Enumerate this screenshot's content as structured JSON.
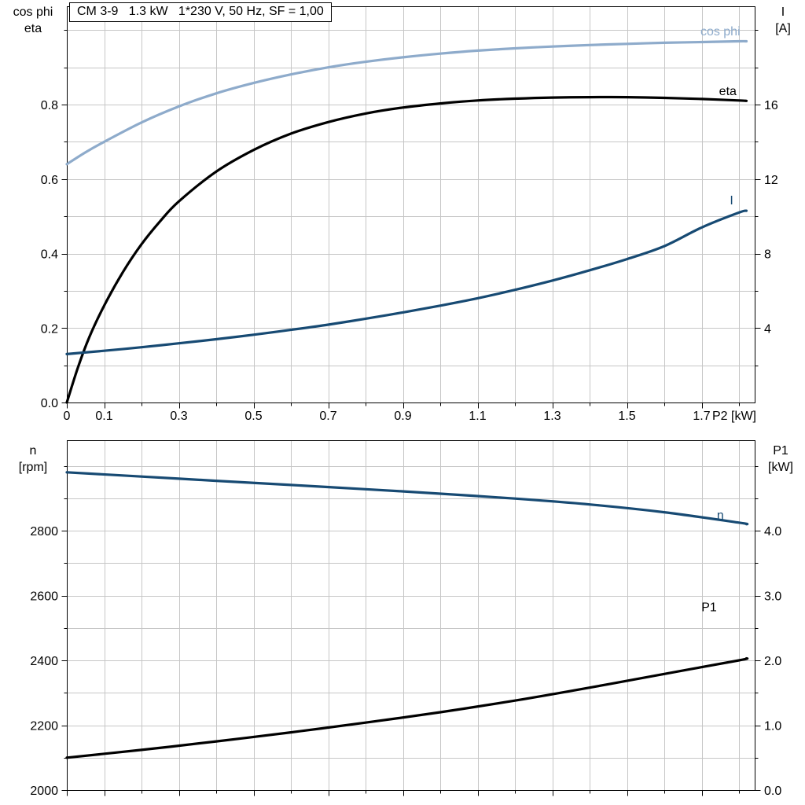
{
  "title_box": "CM 3-9   1.3 kW   1*230 V, 50 Hz, SF = 1,00",
  "corner_labels": {
    "top_left": {
      "line1": "cos phi",
      "line2": "eta"
    },
    "top_right": {
      "line1": "I",
      "line2": "[A]"
    },
    "bottom_left": {
      "line1": "n",
      "line2": "[rpm]"
    },
    "bottom_right": {
      "line1": "P1",
      "line2": "[kW]"
    }
  },
  "colors": {
    "light_blue": "#8EABCB",
    "dark_blue": "#174A73",
    "black": "#000000",
    "grid": "#c6c6c6"
  },
  "chart_data": [
    {
      "type": "line",
      "title": "CM 3-9   1.3 kW   1*230 V, 50 Hz, SF = 1,00",
      "grid": true,
      "x_axis": {
        "label": "P2 [kW]",
        "min": 0,
        "max": 1.842,
        "grid_step": 0.1,
        "ticks": [
          0,
          0.1,
          0.3,
          0.5,
          0.7,
          0.9,
          1.1,
          1.3,
          1.5,
          1.7
        ],
        "tick_labels": [
          "0",
          "0.1",
          "0.3",
          "0.5",
          "0.7",
          "0.9",
          "1.1",
          "1.3",
          "1.5",
          "1.7"
        ]
      },
      "y_left": {
        "label": "cos phi / eta",
        "min": 0,
        "max": 1.064,
        "grid_step": 0.1,
        "ticks": [
          0,
          0.2,
          0.4,
          0.6,
          0.8
        ],
        "tick_labels": [
          "0.0",
          "0.2",
          "0.4",
          "0.6",
          "0.8"
        ]
      },
      "y_right": {
        "label": "I [A]",
        "min": 0,
        "max": 21.28,
        "ticks": [
          4,
          8,
          12,
          16
        ],
        "tick_labels": [
          "4",
          "8",
          "12",
          "16"
        ]
      },
      "series": [
        {
          "name": "cos phi",
          "axis": "left",
          "color": "#8EABCB",
          "x": [
            0,
            0.05,
            0.1,
            0.2,
            0.3,
            0.4,
            0.5,
            0.6,
            0.7,
            0.8,
            0.9,
            1.0,
            1.1,
            1.2,
            1.3,
            1.4,
            1.5,
            1.6,
            1.7,
            1.8,
            1.82
          ],
          "y": [
            0.64,
            0.672,
            0.7,
            0.752,
            0.795,
            0.83,
            0.858,
            0.881,
            0.9,
            0.915,
            0.927,
            0.937,
            0.945,
            0.951,
            0.956,
            0.96,
            0.963,
            0.966,
            0.968,
            0.97,
            0.97
          ],
          "label_at": [
            1.75,
            0.996
          ]
        },
        {
          "name": "eta",
          "axis": "left",
          "color": "#000000",
          "x": [
            0,
            0.03,
            0.06,
            0.1,
            0.15,
            0.2,
            0.25,
            0.3,
            0.4,
            0.5,
            0.6,
            0.7,
            0.8,
            0.9,
            1.0,
            1.1,
            1.2,
            1.3,
            1.4,
            1.5,
            1.6,
            1.7,
            1.8,
            1.82
          ],
          "y": [
            0,
            0.095,
            0.175,
            0.26,
            0.35,
            0.425,
            0.487,
            0.54,
            0.62,
            0.678,
            0.722,
            0.753,
            0.776,
            0.792,
            0.803,
            0.811,
            0.816,
            0.819,
            0.82,
            0.82,
            0.818,
            0.815,
            0.811,
            0.81
          ],
          "label_at": [
            1.77,
            0.836
          ]
        },
        {
          "name": "I",
          "axis": "right",
          "color": "#174A73",
          "x": [
            0,
            0.1,
            0.2,
            0.3,
            0.4,
            0.5,
            0.6,
            0.7,
            0.8,
            0.9,
            1.0,
            1.1,
            1.2,
            1.3,
            1.4,
            1.5,
            1.6,
            1.7,
            1.8,
            1.82
          ],
          "y": [
            2.6,
            2.78,
            2.97,
            3.18,
            3.4,
            3.64,
            3.9,
            4.18,
            4.5,
            4.84,
            5.2,
            5.6,
            6.05,
            6.55,
            7.1,
            7.7,
            8.4,
            9.4,
            10.2,
            10.3
          ],
          "label_at": [
            1.78,
            10.85
          ]
        }
      ]
    },
    {
      "type": "line",
      "title": "",
      "grid": true,
      "x_axis": {
        "label": "",
        "min": 0,
        "max": 1.842,
        "grid_step": 0.1,
        "ticks": [
          0,
          0.1,
          0.3,
          0.5,
          0.7,
          0.9,
          1.1,
          1.3,
          1.5,
          1.7
        ],
        "tick_labels": []
      },
      "y_left": {
        "label": "n [rpm]",
        "min": 2000,
        "max": 3079,
        "grid_step": 100,
        "ticks": [
          2000,
          2200,
          2400,
          2600,
          2800
        ],
        "tick_labels": [
          "2000",
          "2200",
          "2400",
          "2600",
          "2800"
        ]
      },
      "y_right": {
        "label": "P1 [kW]",
        "min": 0,
        "max": 5.394,
        "ticks": [
          0,
          1,
          2,
          3,
          4
        ],
        "tick_labels": [
          "0.0",
          "1.0",
          "2.0",
          "3.0",
          "4.0"
        ]
      },
      "series": [
        {
          "name": "n",
          "axis": "left",
          "color": "#174A73",
          "x": [
            0,
            0.2,
            0.4,
            0.6,
            0.8,
            1.0,
            1.2,
            1.4,
            1.6,
            1.8,
            1.82
          ],
          "y": [
            2980,
            2967,
            2954,
            2941,
            2928,
            2914,
            2899,
            2881,
            2857,
            2825,
            2820
          ],
          "label_at": [
            1.75,
            2848
          ]
        },
        {
          "name": "P1",
          "axis": "right",
          "color": "#000000",
          "x": [
            0,
            0.2,
            0.4,
            0.6,
            0.8,
            1.0,
            1.2,
            1.4,
            1.6,
            1.8,
            1.82
          ],
          "y": [
            0.5,
            0.62,
            0.75,
            0.89,
            1.04,
            1.2,
            1.38,
            1.58,
            1.79,
            2.0,
            2.03
          ],
          "label_at": [
            1.72,
            2.82
          ]
        }
      ]
    }
  ]
}
